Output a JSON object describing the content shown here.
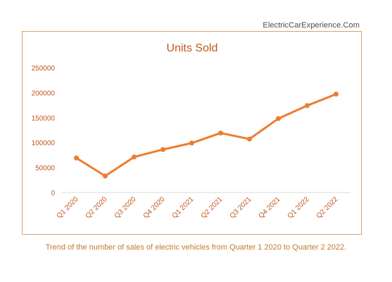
{
  "site": {
    "label": "ElectricCarExperience.Com"
  },
  "caption": "Trend of the number of sales of electric vehicles from Quarter 1 2020  to Quarter 2 2022.",
  "colors": {
    "accent": "#ed7d31",
    "title": "#c0591d",
    "axis_text": "#c0591d",
    "frame": "#d9a46b",
    "caption": "#c47a2c"
  },
  "chart_data": {
    "type": "line",
    "title": "Units Sold",
    "xlabel": "",
    "ylabel": "",
    "categories": [
      "Q1 2020",
      "Q2 2020",
      "Q3 2020",
      "Q4 2020",
      "Q1 2021",
      "Q2 2021",
      "Q3 2021",
      "Q4 2021",
      "Q1 2022",
      "Q2 2022"
    ],
    "series": [
      {
        "values": [
          69000,
          33000,
          71000,
          86000,
          99000,
          119000,
          107000,
          148000,
          174000,
          197000
        ]
      }
    ],
    "ylim": [
      0,
      250000
    ],
    "yticks": [
      "0",
      "50000",
      "100000",
      "150000",
      "200000",
      "250000"
    ],
    "grid": false,
    "legend": "none"
  }
}
